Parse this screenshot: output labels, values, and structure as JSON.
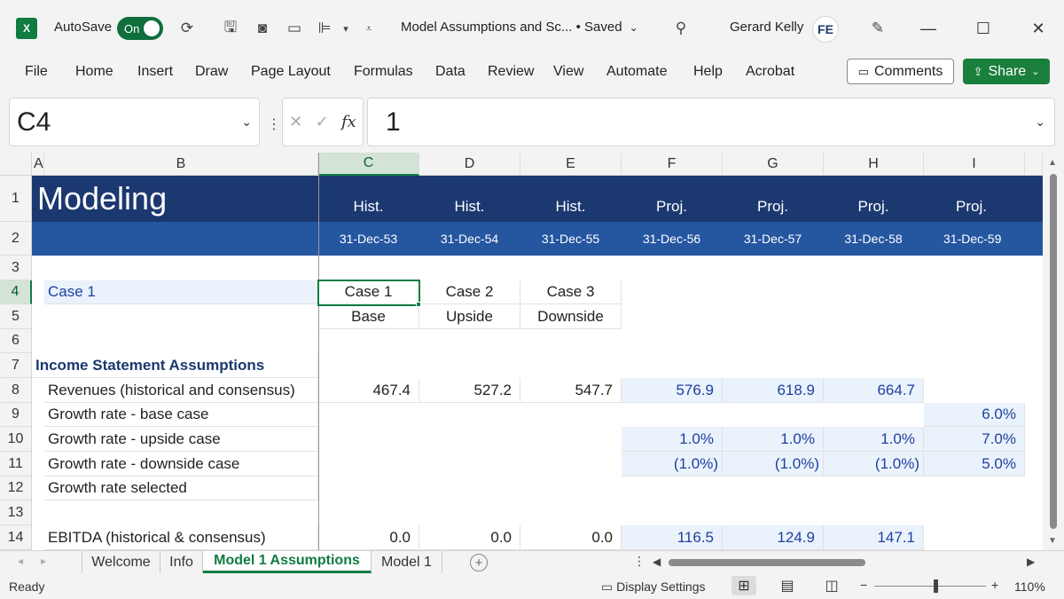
{
  "titlebar": {
    "app_icon": "X",
    "autosave_label": "AutoSave",
    "autosave_state": "On",
    "doc_title": "Model Assumptions and Sc... • Saved",
    "user_name": "Gerard Kelly",
    "user_initials": "FE"
  },
  "ribbon": {
    "tabs": [
      "File",
      "Home",
      "Insert",
      "Draw",
      "Page Layout",
      "Formulas",
      "Data",
      "Review",
      "View",
      "Automate",
      "Help",
      "Acrobat"
    ],
    "comments_label": "Comments",
    "share_label": "Share"
  },
  "formula_bar": {
    "name_box": "C4",
    "formula": "1"
  },
  "grid": {
    "columns": [
      "A",
      "B",
      "C",
      "D",
      "E",
      "F",
      "G",
      "H",
      "I"
    ],
    "rows": [
      "1",
      "2",
      "3",
      "4",
      "5",
      "6",
      "7",
      "8",
      "9",
      "10",
      "11",
      "12",
      "13",
      "14"
    ],
    "title": "Modeling",
    "period_types": [
      "Hist.",
      "Hist.",
      "Hist.",
      "Proj.",
      "Proj.",
      "Proj.",
      "Proj."
    ],
    "period_dates": [
      "31-Dec-53",
      "31-Dec-54",
      "31-Dec-55",
      "31-Dec-56",
      "31-Dec-57",
      "31-Dec-58",
      "31-Dec-59"
    ],
    "case_label": "Case  1",
    "case_names": [
      "Case  1",
      "Case  2",
      "Case  3"
    ],
    "case_descriptions": [
      "Base",
      "Upside",
      "Downside"
    ],
    "section_heading": "Income Statement Assumptions",
    "line_items": [
      {
        "label": "Revenues (historical and consensus)",
        "values": [
          "467.4",
          "527.2",
          "547.7",
          "576.9",
          "618.9",
          "664.7",
          ""
        ]
      },
      {
        "label": "Growth rate - base case",
        "values": [
          "",
          "",
          "",
          "",
          "",
          "",
          "6.0%"
        ]
      },
      {
        "label": "Growth rate - upside case",
        "values": [
          "",
          "",
          "",
          "1.0%",
          "1.0%",
          "1.0%",
          "7.0%"
        ]
      },
      {
        "label": "Growth rate - downside case",
        "values": [
          "",
          "",
          "",
          "(1.0%)",
          "(1.0%)",
          "(1.0%)",
          "5.0%"
        ]
      },
      {
        "label": "Growth rate selected",
        "values": [
          "",
          "",
          "",
          "",
          "",
          "",
          ""
        ]
      },
      {
        "label": "",
        "values": [
          "",
          "",
          "",
          "",
          "",
          "",
          ""
        ]
      },
      {
        "label": "EBITDA (historical & consensus)",
        "values": [
          "0.0",
          "0.0",
          "0.0",
          "116.5",
          "124.9",
          "147.1",
          ""
        ]
      }
    ]
  },
  "sheets": {
    "tabs": [
      "Welcome",
      "Info",
      "Model 1 Assumptions",
      "Model 1"
    ],
    "active": "Model 1 Assumptions"
  },
  "status": {
    "ready": "Ready",
    "display_settings": "Display Settings",
    "zoom_minus": "−",
    "zoom_plus": "+",
    "zoom": "110%",
    "zoom_level": 0.55
  },
  "colors": {
    "excel_green": "#107c41",
    "header_navy": "#1b3870",
    "header_blue": "#2556a0",
    "input_fill": "#eaf2fb",
    "input_text": "#1f3fa0"
  }
}
